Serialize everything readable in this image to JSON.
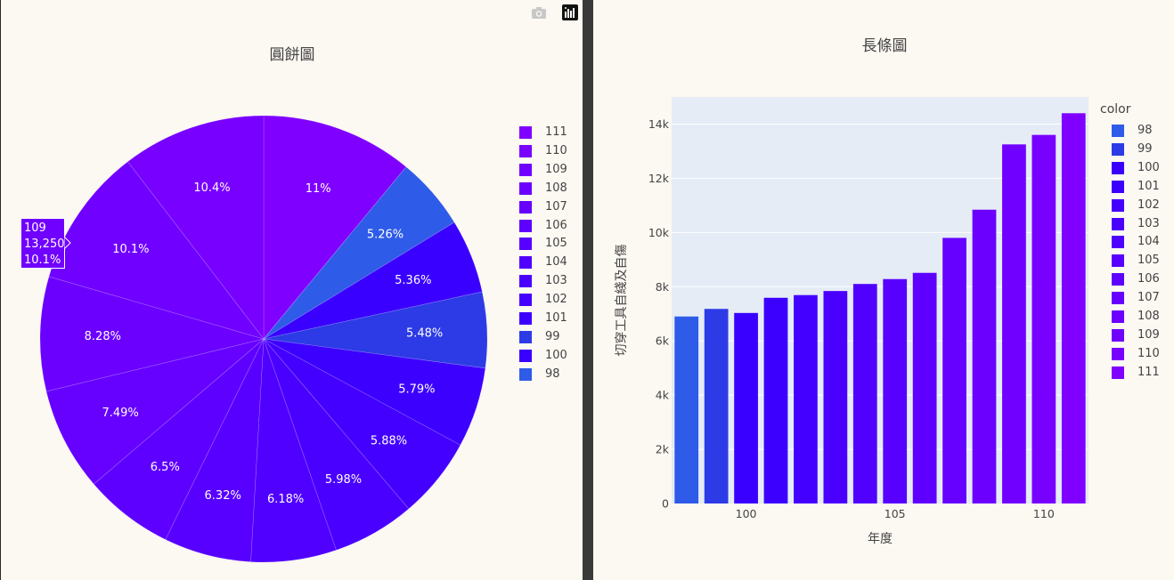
{
  "colors": {
    "legend_swatches": {
      "111": "#8000ff",
      "110": "#7800ff",
      "109": "#7000ff",
      "108": "#6c00ff",
      "107": "#6600ff",
      "106": "#5e00ff",
      "105": "#5800ff",
      "104": "#5000ff",
      "103": "#4a00ff",
      "102": "#4400ff",
      "101": "#3c00ff",
      "99": "#2d3be6",
      "100": "#3a00ff",
      "98": "#2e5be8"
    },
    "panel_background": "#fcf8f2",
    "plot_background": "#e5ecf6"
  },
  "toolbar": {
    "camera_icon": "camera-icon",
    "plotly_icon": "plotly-logo-icon"
  },
  "tooltip": {
    "line1": "109",
    "line2": "13,250",
    "line3": "10.1%"
  },
  "chart_data": [
    {
      "type": "pie",
      "title": "圓餅圖",
      "legend_order": [
        "111",
        "110",
        "109",
        "108",
        "107",
        "106",
        "105",
        "104",
        "103",
        "102",
        "101",
        "99",
        "100",
        "98"
      ],
      "slices": [
        {
          "label": "111",
          "percent": 11,
          "text": "11%",
          "color": "#8000ff"
        },
        {
          "label": "98",
          "percent": 5.26,
          "text": "5.26%",
          "color": "#2e5be8"
        },
        {
          "label": "100",
          "percent": 5.36,
          "text": "5.36%",
          "color": "#3a00ff"
        },
        {
          "label": "99",
          "percent": 5.48,
          "text": "5.48%",
          "color": "#2d3be6"
        },
        {
          "label": "101",
          "percent": 5.79,
          "text": "5.79%",
          "color": "#3c00ff"
        },
        {
          "label": "102",
          "percent": 5.88,
          "text": "5.88%",
          "color": "#4400ff"
        },
        {
          "label": "103",
          "percent": 5.98,
          "text": "5.98%",
          "color": "#4a00ff"
        },
        {
          "label": "104",
          "percent": 6.18,
          "text": "6.18%",
          "color": "#5000ff"
        },
        {
          "label": "105",
          "percent": 6.32,
          "text": "6.32%",
          "color": "#5800ff"
        },
        {
          "label": "106",
          "percent": 6.5,
          "text": "6.5%",
          "color": "#5e00ff"
        },
        {
          "label": "107",
          "percent": 7.49,
          "text": "7.49%",
          "color": "#6600ff"
        },
        {
          "label": "108",
          "percent": 8.28,
          "text": "8.28%",
          "color": "#6c00ff"
        },
        {
          "label": "109",
          "percent": 10.1,
          "text": "10.1%",
          "color": "#7000ff"
        },
        {
          "label": "110",
          "percent": 10.4,
          "text": "10.4%",
          "color": "#7800ff"
        }
      ]
    },
    {
      "type": "bar",
      "title": "長條圖",
      "xlabel": "年度",
      "ylabel": "切穿工具自綫及自傷",
      "legend_title": "color",
      "legend_order": [
        "98",
        "99",
        "100",
        "101",
        "102",
        "103",
        "104",
        "105",
        "106",
        "107",
        "108",
        "109",
        "110",
        "111"
      ],
      "x": [
        98,
        99,
        100,
        101,
        102,
        103,
        104,
        105,
        106,
        107,
        108,
        109,
        110,
        111
      ],
      "values": [
        6900,
        7180,
        7030,
        7590,
        7690,
        7840,
        8100,
        8280,
        8510,
        9800,
        10840,
        13250,
        13600,
        14400
      ],
      "colors": [
        "#2e5be8",
        "#2d3be6",
        "#3a00ff",
        "#3c00ff",
        "#4400ff",
        "#4a00ff",
        "#5000ff",
        "#5800ff",
        "#5e00ff",
        "#6600ff",
        "#6c00ff",
        "#7000ff",
        "#7800ff",
        "#8000ff"
      ],
      "xticks": [
        100,
        105,
        110
      ],
      "yticks": [
        0,
        2000,
        4000,
        6000,
        8000,
        10000,
        12000,
        14000
      ],
      "ytick_labels": [
        "0",
        "2k",
        "4k",
        "6k",
        "8k",
        "10k",
        "12k",
        "14k"
      ],
      "xlim": [
        97.5,
        111.5
      ],
      "ylim": [
        0,
        15000
      ],
      "grid": true
    }
  ]
}
